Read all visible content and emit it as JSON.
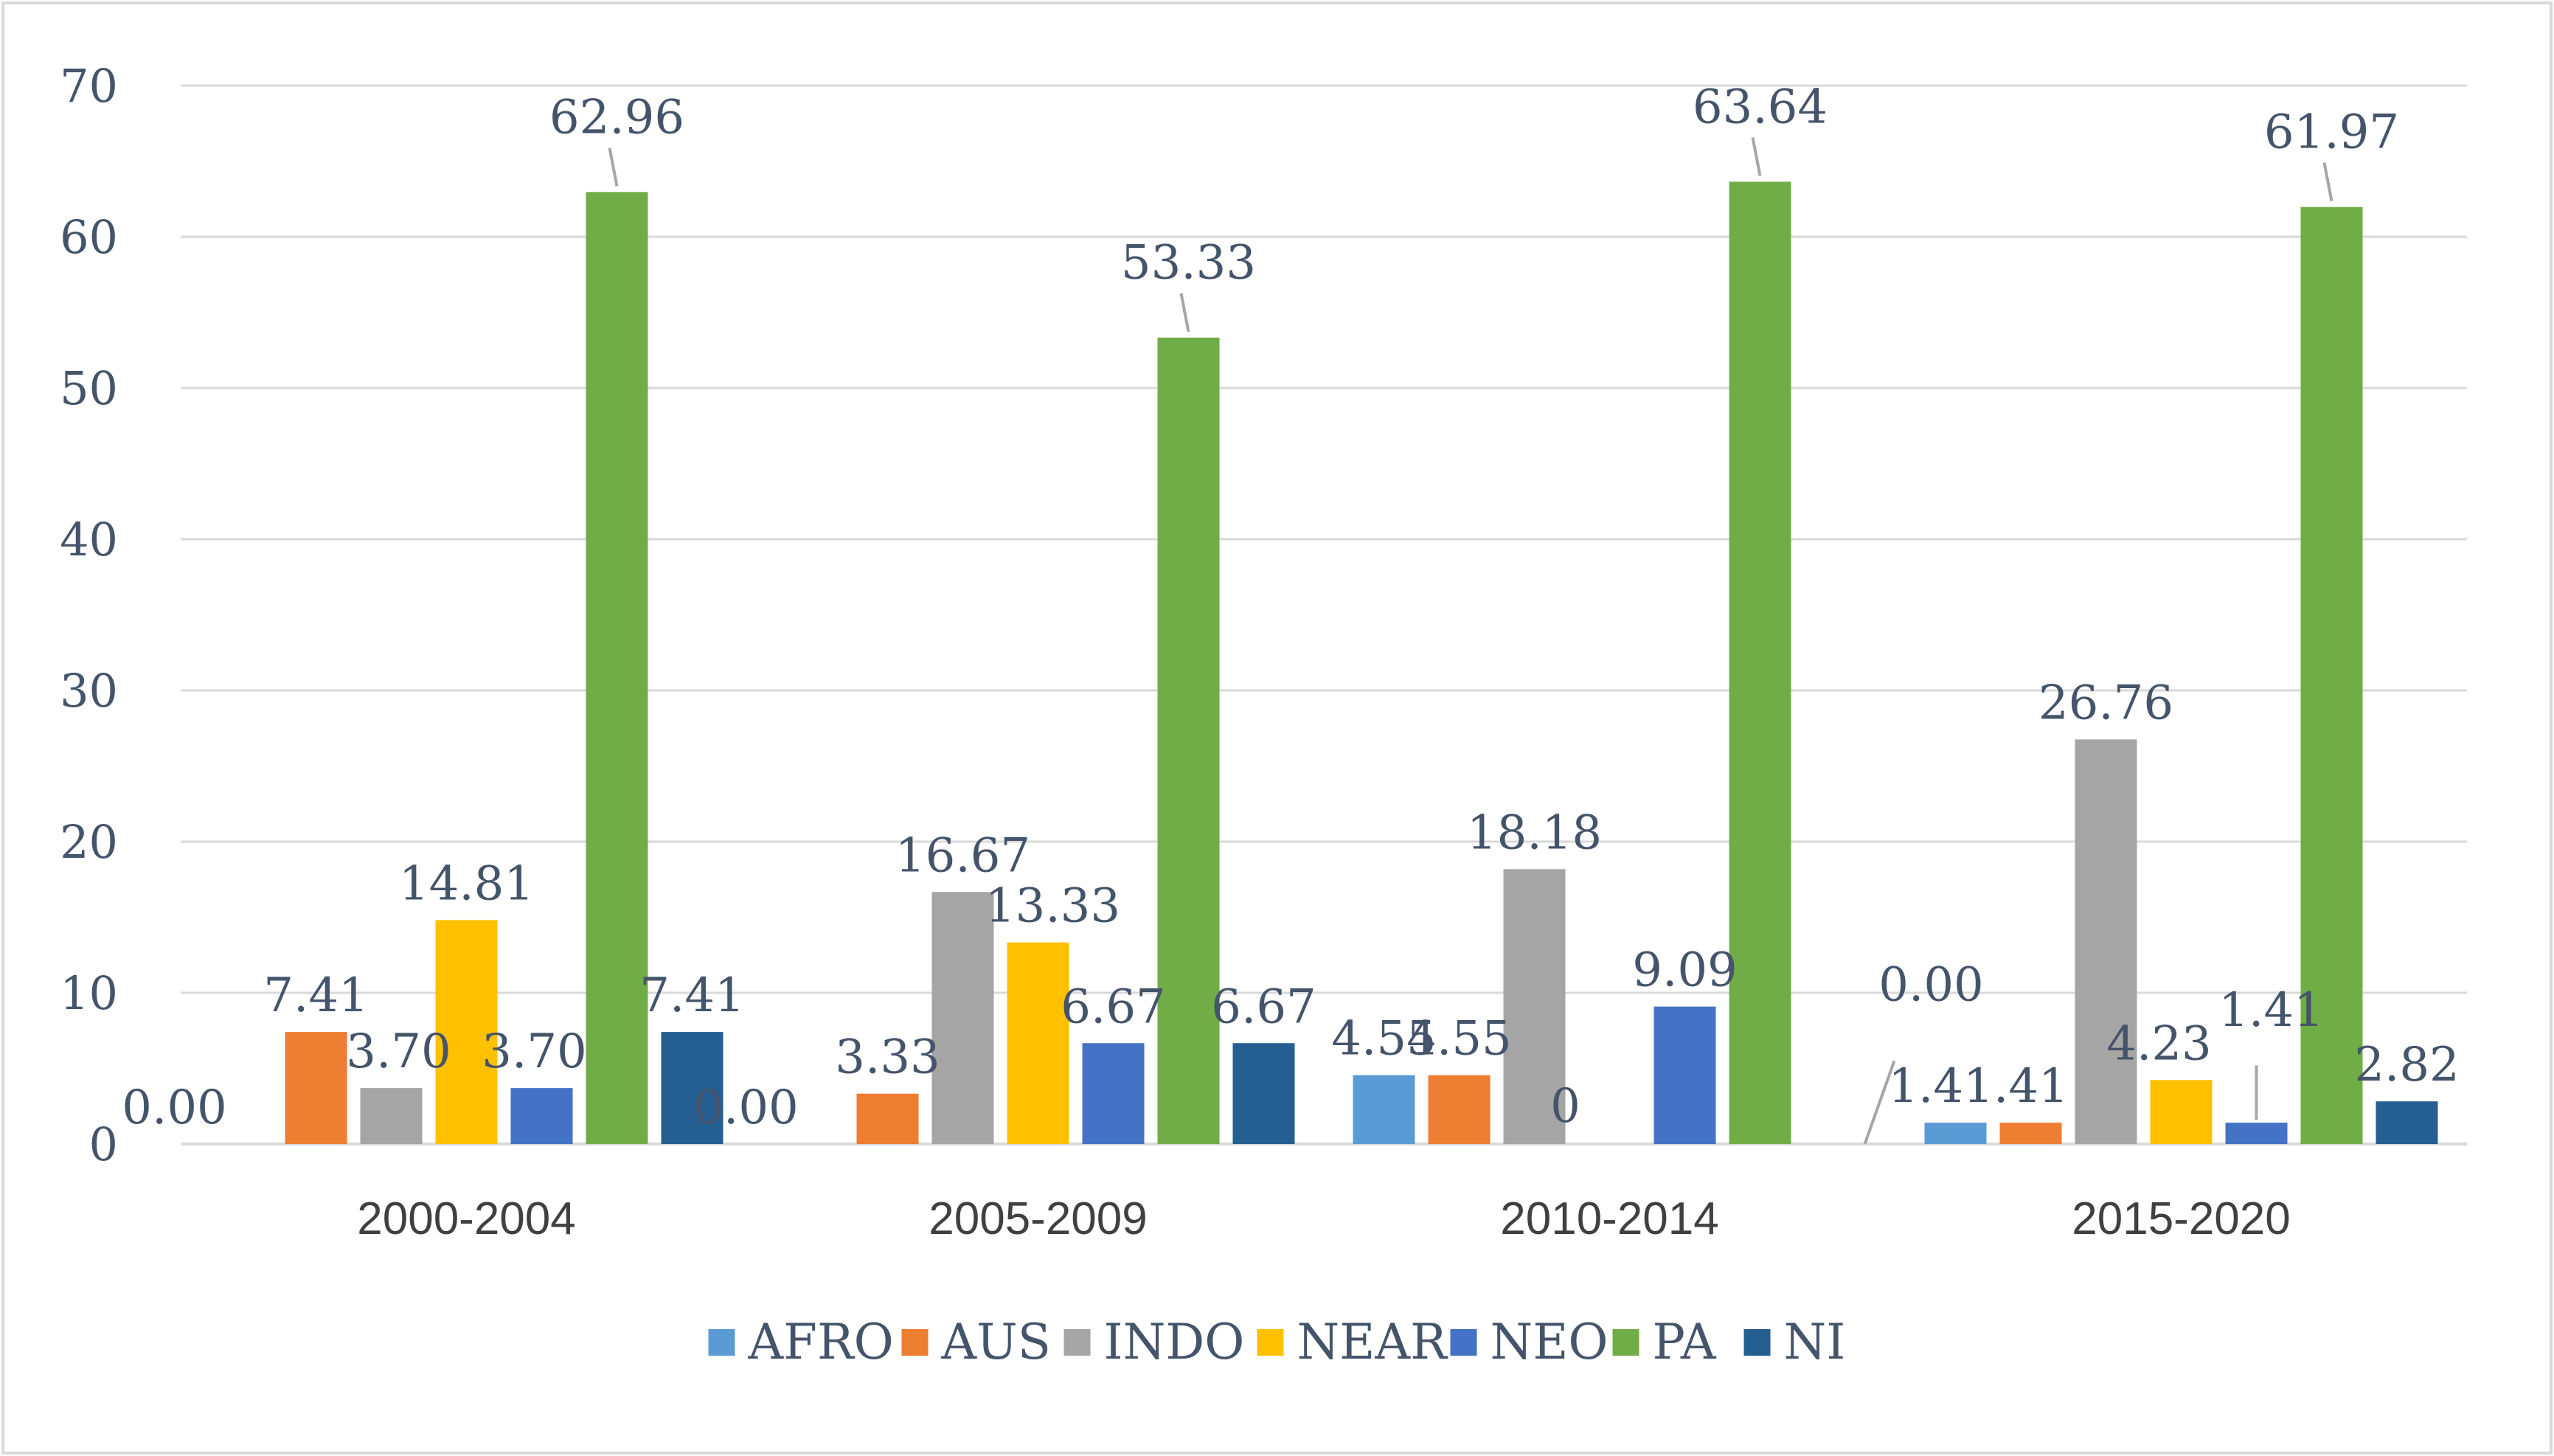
{
  "chart_data": {
    "type": "bar",
    "title": "",
    "xlabel": "",
    "ylabel": "",
    "ylim": [
      0,
      70
    ],
    "yticks": [
      0,
      10,
      20,
      30,
      40,
      50,
      60,
      70
    ],
    "grid": true,
    "legend_position": "bottom",
    "categories": [
      "2000-2004",
      "2005-2009",
      "2010-2014",
      "2015-2020"
    ],
    "series": [
      {
        "name": "AFRO",
        "color": "#5b9bd5",
        "values": [
          0.0,
          0.0,
          4.55,
          1.41
        ],
        "labels": [
          "0.00",
          "0.00",
          "4.55",
          "1.41"
        ]
      },
      {
        "name": "AUS",
        "color": "#ed7d31",
        "values": [
          7.41,
          3.33,
          4.55,
          1.41
        ],
        "labels": [
          "7.41",
          "3.33",
          "4.55",
          "1.41"
        ]
      },
      {
        "name": "INDO",
        "color": "#a5a5a5",
        "values": [
          3.7,
          16.67,
          18.18,
          26.76
        ],
        "labels": [
          "3.70",
          "16.67",
          "18.18",
          "26.76"
        ]
      },
      {
        "name": "NEAR",
        "color": "#ffc000",
        "values": [
          14.81,
          13.33,
          0,
          4.23
        ],
        "labels": [
          "14.81",
          "13.33",
          "0",
          "4.23"
        ]
      },
      {
        "name": "NEO",
        "color": "#4472c4",
        "values": [
          3.7,
          6.67,
          9.09,
          1.41
        ],
        "labels": [
          "3.70",
          "6.67",
          "9.09",
          "1.41"
        ]
      },
      {
        "name": "PA",
        "color": "#70ad47",
        "values": [
          62.96,
          53.33,
          63.64,
          61.97
        ],
        "labels": [
          "62.96",
          "53.33",
          "63.64",
          "61.97"
        ]
      },
      {
        "name": "NI",
        "color": "#255e91",
        "values": [
          7.41,
          6.67,
          0.0,
          2.82
        ],
        "labels": [
          "7.41",
          "6.67",
          "0.00",
          "2.82"
        ]
      }
    ]
  }
}
